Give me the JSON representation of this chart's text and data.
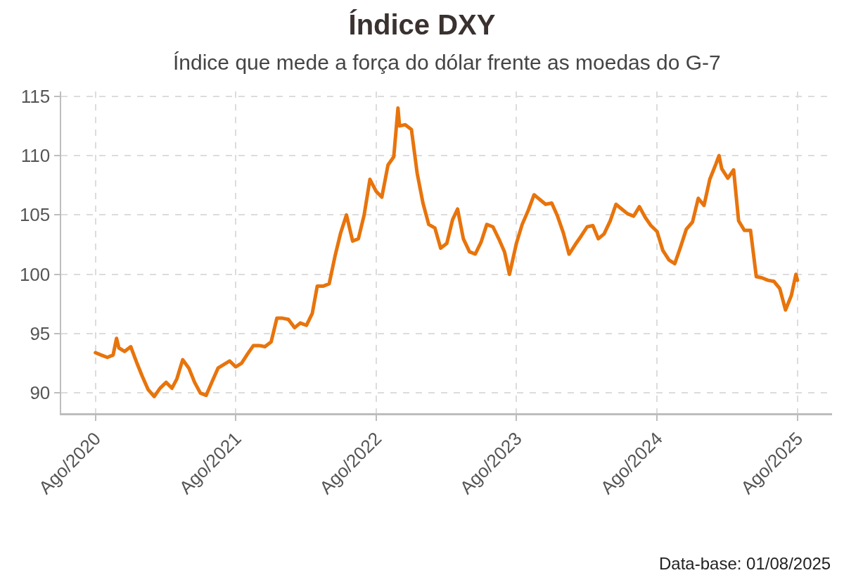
{
  "chart_data": {
    "type": "line",
    "title": "Índice DXY",
    "subtitle": "Índice que mede a força do dólar frente as moedas do G-7",
    "annotations": [
      "Data-base: 01/08/2025"
    ],
    "x": [
      "2020-08-01",
      "2020-08-16",
      "2020-09-01",
      "2020-09-16",
      "2020-09-25",
      "2020-10-01",
      "2020-10-16",
      "2020-11-01",
      "2020-11-16",
      "2020-12-01",
      "2020-12-16",
      "2021-01-01",
      "2021-01-16",
      "2021-02-01",
      "2021-02-16",
      "2021-03-01",
      "2021-03-16",
      "2021-04-01",
      "2021-04-16",
      "2021-05-01",
      "2021-05-16",
      "2021-06-01",
      "2021-06-16",
      "2021-07-01",
      "2021-07-16",
      "2021-08-01",
      "2021-08-16",
      "2021-09-01",
      "2021-09-16",
      "2021-10-01",
      "2021-10-16",
      "2021-11-01",
      "2021-11-16",
      "2021-12-01",
      "2021-12-16",
      "2022-01-01",
      "2022-01-16",
      "2022-02-01",
      "2022-02-16",
      "2022-03-01",
      "2022-03-16",
      "2022-04-01",
      "2022-04-16",
      "2022-05-01",
      "2022-05-16",
      "2022-06-01",
      "2022-06-16",
      "2022-07-01",
      "2022-07-16",
      "2022-08-01",
      "2022-08-16",
      "2022-09-01",
      "2022-09-16",
      "2022-09-27",
      "2022-10-01",
      "2022-10-16",
      "2022-11-01",
      "2022-11-16",
      "2022-12-01",
      "2022-12-16",
      "2023-01-01",
      "2023-01-16",
      "2023-02-01",
      "2023-02-16",
      "2023-03-01",
      "2023-03-16",
      "2023-04-01",
      "2023-04-16",
      "2023-05-01",
      "2023-05-16",
      "2023-06-01",
      "2023-06-16",
      "2023-07-01",
      "2023-07-14",
      "2023-08-01",
      "2023-08-16",
      "2023-09-01",
      "2023-09-16",
      "2023-10-01",
      "2023-10-16",
      "2023-11-01",
      "2023-11-16",
      "2023-12-01",
      "2023-12-16",
      "2024-01-01",
      "2024-01-16",
      "2024-02-01",
      "2024-02-16",
      "2024-03-01",
      "2024-03-16",
      "2024-04-01",
      "2024-04-16",
      "2024-05-01",
      "2024-05-16",
      "2024-06-01",
      "2024-06-16",
      "2024-07-01",
      "2024-07-16",
      "2024-08-01",
      "2024-08-16",
      "2024-09-01",
      "2024-09-16",
      "2024-10-01",
      "2024-10-16",
      "2024-11-01",
      "2024-11-16",
      "2024-12-01",
      "2024-12-16",
      "2025-01-01",
      "2025-01-09",
      "2025-01-16",
      "2025-02-01",
      "2025-02-16",
      "2025-03-01",
      "2025-03-16",
      "2025-04-01",
      "2025-04-16",
      "2025-05-01",
      "2025-05-16",
      "2025-06-01",
      "2025-06-16",
      "2025-07-01",
      "2025-07-16",
      "2025-07-28",
      "2025-08-01"
    ],
    "series": [
      {
        "color": "#e8740c",
        "values": [
          93.4,
          93.2,
          93.0,
          93.2,
          94.6,
          93.8,
          93.5,
          93.9,
          92.6,
          91.4,
          90.3,
          89.7,
          90.4,
          90.9,
          90.4,
          91.2,
          92.8,
          92.1,
          90.9,
          90.0,
          89.8,
          91.0,
          92.1,
          92.4,
          92.7,
          92.2,
          92.5,
          93.3,
          94.0,
          94.0,
          93.9,
          94.3,
          96.3,
          96.3,
          96.2,
          95.5,
          95.9,
          95.7,
          96.7,
          99.0,
          99.0,
          99.2,
          101.5,
          103.5,
          105.0,
          102.8,
          103.0,
          105.0,
          108.0,
          107.0,
          106.5,
          109.2,
          109.9,
          114.0,
          112.5,
          112.6,
          112.2,
          108.5,
          106.0,
          104.2,
          103.9,
          102.2,
          102.6,
          104.6,
          105.5,
          103.0,
          101.9,
          101.7,
          102.7,
          104.2,
          104.0,
          103.0,
          101.9,
          100.0,
          102.6,
          104.2,
          105.4,
          106.7,
          106.3,
          105.9,
          106.0,
          104.9,
          103.5,
          101.7,
          102.5,
          103.2,
          104.0,
          104.1,
          103.0,
          103.4,
          104.5,
          105.9,
          105.5,
          105.1,
          104.9,
          105.7,
          104.8,
          104.1,
          103.6,
          102.0,
          101.2,
          100.9,
          102.3,
          103.8,
          104.4,
          106.4,
          105.8,
          108.0,
          109.3,
          110.0,
          108.9,
          108.1,
          108.8,
          104.5,
          103.7,
          103.7,
          99.8,
          99.7,
          99.5,
          99.4,
          98.8,
          97.0,
          98.2,
          100.0,
          99.5
        ]
      }
    ],
    "xlim": [
      "2020-05-04",
      "2025-10-30"
    ],
    "xticks": [
      {
        "value": "2020-08-01",
        "label": "Ago/2020"
      },
      {
        "value": "2021-08-01",
        "label": "Ago/2021"
      },
      {
        "value": "2022-08-01",
        "label": "Ago/2022"
      },
      {
        "value": "2023-08-01",
        "label": "Ago/2023"
      },
      {
        "value": "2024-08-01",
        "label": "Ago/2024"
      },
      {
        "value": "2025-08-01",
        "label": "Ago/2025"
      }
    ],
    "ylim": [
      88.3,
      115.4
    ],
    "yticks": [
      90,
      95,
      100,
      105,
      110,
      115
    ],
    "grid": true,
    "line_style": "solid",
    "marker": "none"
  }
}
